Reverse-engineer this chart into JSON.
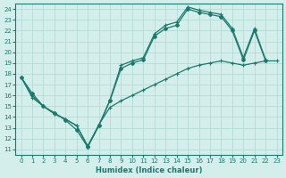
{
  "xlabel": "Humidex (Indice chaleur)",
  "bg_color": "#d4eeeb",
  "grid_color": "#aed8d4",
  "line_color": "#1a7a6e",
  "xlim": [
    -0.5,
    23.5
  ],
  "ylim": [
    10.5,
    24.5
  ],
  "yticks": [
    11,
    12,
    13,
    14,
    15,
    16,
    17,
    18,
    19,
    20,
    21,
    22,
    23,
    24
  ],
  "xticks": [
    0,
    1,
    2,
    3,
    4,
    5,
    6,
    7,
    8,
    9,
    10,
    11,
    12,
    13,
    14,
    15,
    16,
    17,
    18,
    19,
    20,
    21,
    22,
    23
  ],
  "line1_x": [
    0,
    1,
    2,
    3,
    4,
    5,
    6,
    7,
    8,
    9,
    10,
    11,
    12,
    13,
    14,
    15,
    16,
    17,
    18,
    19,
    20,
    21,
    22
  ],
  "line1_y": [
    17.7,
    16.2,
    15.0,
    14.4,
    13.7,
    12.8,
    11.2,
    13.2,
    15.5,
    18.5,
    19.0,
    19.3,
    21.5,
    22.2,
    22.5,
    24.0,
    23.7,
    23.5,
    23.3,
    22.0,
    19.3,
    22.0,
    19.2
  ],
  "line2_x": [
    0,
    1,
    2,
    3,
    4,
    5,
    6,
    7,
    8,
    9,
    10,
    11,
    12,
    13,
    14,
    15,
    16,
    17,
    18,
    19,
    20,
    21,
    22
  ],
  "line2_y": [
    17.7,
    16.0,
    15.0,
    14.3,
    13.8,
    13.2,
    11.3,
    13.2,
    15.6,
    18.8,
    19.2,
    19.5,
    21.7,
    22.5,
    22.8,
    24.2,
    23.9,
    23.7,
    23.5,
    22.2,
    19.5,
    22.2,
    19.3
  ],
  "line3_x": [
    0,
    1,
    2,
    3,
    4,
    5,
    6,
    7,
    8,
    9,
    10,
    11,
    12,
    13,
    14,
    15,
    16,
    17,
    18,
    19,
    20,
    21,
    22,
    23
  ],
  "line3_y": [
    17.7,
    15.8,
    15.0,
    14.3,
    13.8,
    13.2,
    11.3,
    13.3,
    14.9,
    15.5,
    16.0,
    16.5,
    17.0,
    17.5,
    18.0,
    18.5,
    18.8,
    19.0,
    19.2,
    19.0,
    18.8,
    19.0,
    19.2,
    19.2
  ]
}
